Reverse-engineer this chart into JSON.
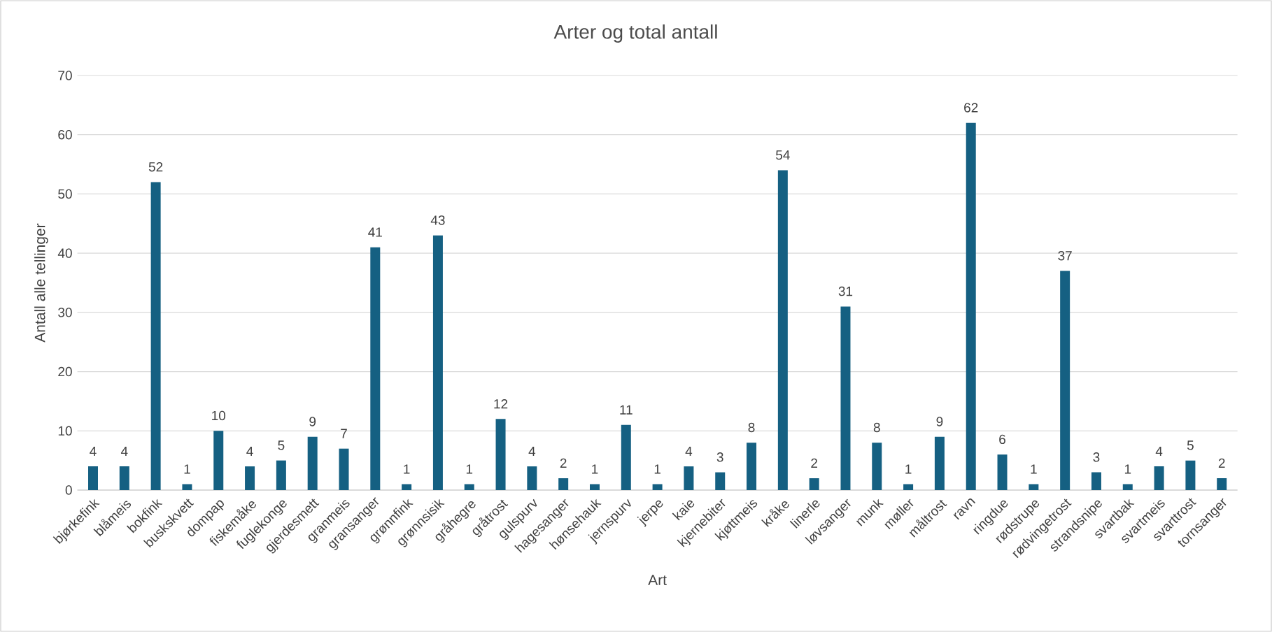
{
  "chart_data": {
    "type": "bar",
    "title": "Arter og total antall",
    "xlabel": "Art",
    "ylabel": "Antall alle tellinger",
    "categories": [
      "bjørkefink",
      "blåmeis",
      "bokfink",
      "buskskvett",
      "dompap",
      "fiskemåke",
      "fuglekonge",
      "gjerdesmett",
      "granmeis",
      "gransanger",
      "grønnfink",
      "grønnsisik",
      "gråhegre",
      "gråtrost",
      "gulspurv",
      "hagesanger",
      "hønsehauk",
      "jernspurv",
      "jerpe",
      "kaie",
      "kjernebiter",
      "kjøttmeis",
      "kråke",
      "linerle",
      "løvsanger",
      "munk",
      "møller",
      "måltrost",
      "ravn",
      "ringdue",
      "rødstrupe",
      "rødvingetrost",
      "strandsnipe",
      "svartbak",
      "svartmeis",
      "svarttrost",
      "tornsanger"
    ],
    "values": [
      4,
      4,
      52,
      1,
      10,
      4,
      5,
      9,
      7,
      41,
      1,
      43,
      1,
      12,
      4,
      2,
      1,
      11,
      1,
      4,
      3,
      8,
      54,
      2,
      31,
      8,
      1,
      9,
      62,
      6,
      1,
      37,
      3,
      1,
      4,
      5,
      2
    ],
    "color": "#156082",
    "ylim": [
      0,
      70
    ],
    "yticks": [
      0,
      10,
      20,
      30,
      40,
      50,
      60,
      70
    ],
    "grid": "y",
    "data_labels": true
  }
}
